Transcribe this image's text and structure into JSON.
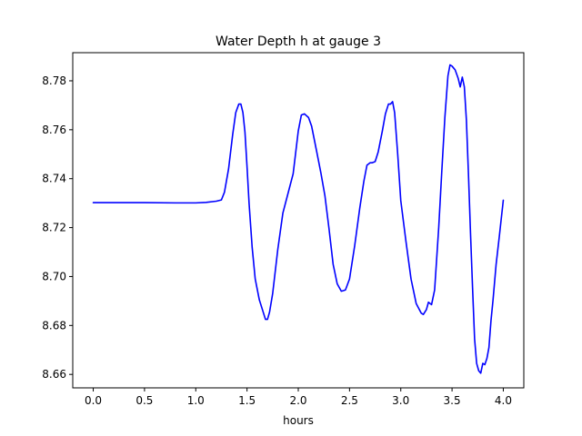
{
  "chart_data": {
    "type": "line",
    "title": "Water Depth h at gauge 3",
    "xlabel": "hours",
    "ylabel": "",
    "xlim": [
      -0.2,
      4.2
    ],
    "ylim": [
      8.6545,
      8.7915
    ],
    "xticks": [
      0.0,
      0.5,
      1.0,
      1.5,
      2.0,
      2.5,
      3.0,
      3.5,
      4.0
    ],
    "xtick_labels": [
      "0.0",
      "0.5",
      "1.0",
      "1.5",
      "2.0",
      "2.5",
      "3.0",
      "3.5",
      "4.0"
    ],
    "yticks": [
      8.66,
      8.68,
      8.7,
      8.72,
      8.74,
      8.76,
      8.78
    ],
    "ytick_labels": [
      "8.66",
      "8.68",
      "8.70",
      "8.72",
      "8.74",
      "8.76",
      "8.78"
    ],
    "grid": false,
    "series": [
      {
        "color": "#0000ff",
        "x": [
          0.0,
          0.5,
          0.8,
          1.0,
          1.1,
          1.2,
          1.25,
          1.28,
          1.32,
          1.36,
          1.39,
          1.42,
          1.44,
          1.46,
          1.48,
          1.5,
          1.52,
          1.55,
          1.58,
          1.62,
          1.65,
          1.68,
          1.7,
          1.72,
          1.75,
          1.8,
          1.85,
          1.9,
          1.95,
          2.0,
          2.03,
          2.06,
          2.1,
          2.13,
          2.18,
          2.22,
          2.26,
          2.3,
          2.34,
          2.38,
          2.42,
          2.46,
          2.5,
          2.55,
          2.6,
          2.64,
          2.67,
          2.7,
          2.72,
          2.75,
          2.78,
          2.82,
          2.85,
          2.88,
          2.9,
          2.92,
          2.94,
          2.97,
          3.0,
          3.05,
          3.1,
          3.15,
          3.2,
          3.22,
          3.25,
          3.27,
          3.3,
          3.33,
          3.37,
          3.4,
          3.43,
          3.46,
          3.48,
          3.5,
          3.53,
          3.56,
          3.58,
          3.6,
          3.62,
          3.64,
          3.66,
          3.68,
          3.7,
          3.72,
          3.74,
          3.76,
          3.78,
          3.8,
          3.82,
          3.84,
          3.86,
          3.88,
          3.9,
          3.93,
          3.96,
          4.0
        ],
        "y": [
          8.7302,
          8.7302,
          8.7301,
          8.7301,
          8.7303,
          8.7308,
          8.7313,
          8.7345,
          8.744,
          8.758,
          8.767,
          8.7705,
          8.7705,
          8.767,
          8.759,
          8.745,
          8.73,
          8.712,
          8.699,
          8.6905,
          8.6865,
          8.6825,
          8.6825,
          8.6855,
          8.693,
          8.711,
          8.726,
          8.734,
          8.742,
          8.7595,
          8.766,
          8.7665,
          8.765,
          8.7615,
          8.751,
          8.7425,
          8.733,
          8.7195,
          8.705,
          8.697,
          8.694,
          8.6945,
          8.699,
          8.7125,
          8.728,
          8.739,
          8.7455,
          8.7465,
          8.7465,
          8.747,
          8.751,
          8.7595,
          8.7665,
          8.7705,
          8.7705,
          8.7715,
          8.767,
          8.75,
          8.731,
          8.7145,
          8.699,
          8.689,
          8.685,
          8.6845,
          8.6865,
          8.6895,
          8.6885,
          8.6945,
          8.72,
          8.743,
          8.765,
          8.782,
          8.7865,
          8.786,
          8.7845,
          8.781,
          8.7775,
          8.7815,
          8.7775,
          8.764,
          8.742,
          8.718,
          8.6955,
          8.6745,
          8.6645,
          8.6615,
          8.6605,
          8.6645,
          8.664,
          8.6665,
          8.671,
          8.682,
          8.6905,
          8.705,
          8.716,
          8.7312
        ]
      }
    ]
  }
}
